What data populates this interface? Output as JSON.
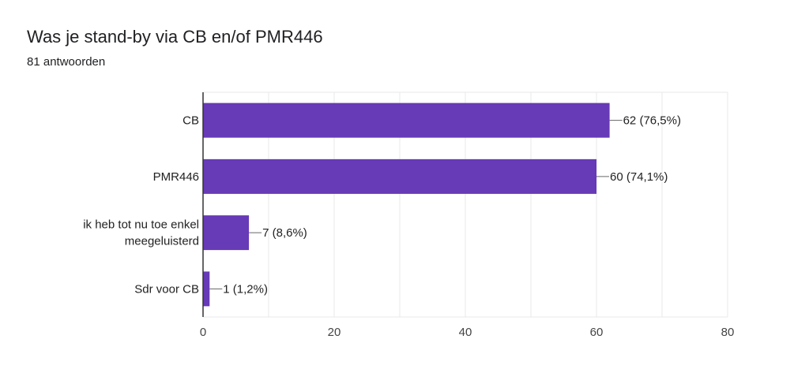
{
  "header": {
    "title": "Was je stand-by via CB en/of PMR446",
    "subtitle": "81 antwoorden"
  },
  "colors": {
    "bar": "#673ab7",
    "grid": "#e8e8e8",
    "axis": "#333333",
    "leader": "#666666"
  },
  "chart_data": {
    "type": "bar",
    "orientation": "horizontal",
    "title": "Was je stand-by via CB en/of PMR446",
    "subtitle": "81 antwoorden",
    "categories": [
      [
        "CB"
      ],
      [
        "PMR446"
      ],
      [
        "ik heb tot nu toe enkel",
        "meegeluisterd"
      ],
      [
        "Sdr voor CB"
      ]
    ],
    "values": [
      62,
      60,
      7,
      1
    ],
    "data_labels": [
      "62 (76,5%)",
      "60 (74,1%)",
      "7 (8,6%)",
      "1 (1,2%)"
    ],
    "xlim": [
      0,
      80
    ],
    "xticks": [
      0,
      20,
      40,
      60,
      80
    ],
    "xlabel": "",
    "ylabel": "",
    "grid": true
  }
}
